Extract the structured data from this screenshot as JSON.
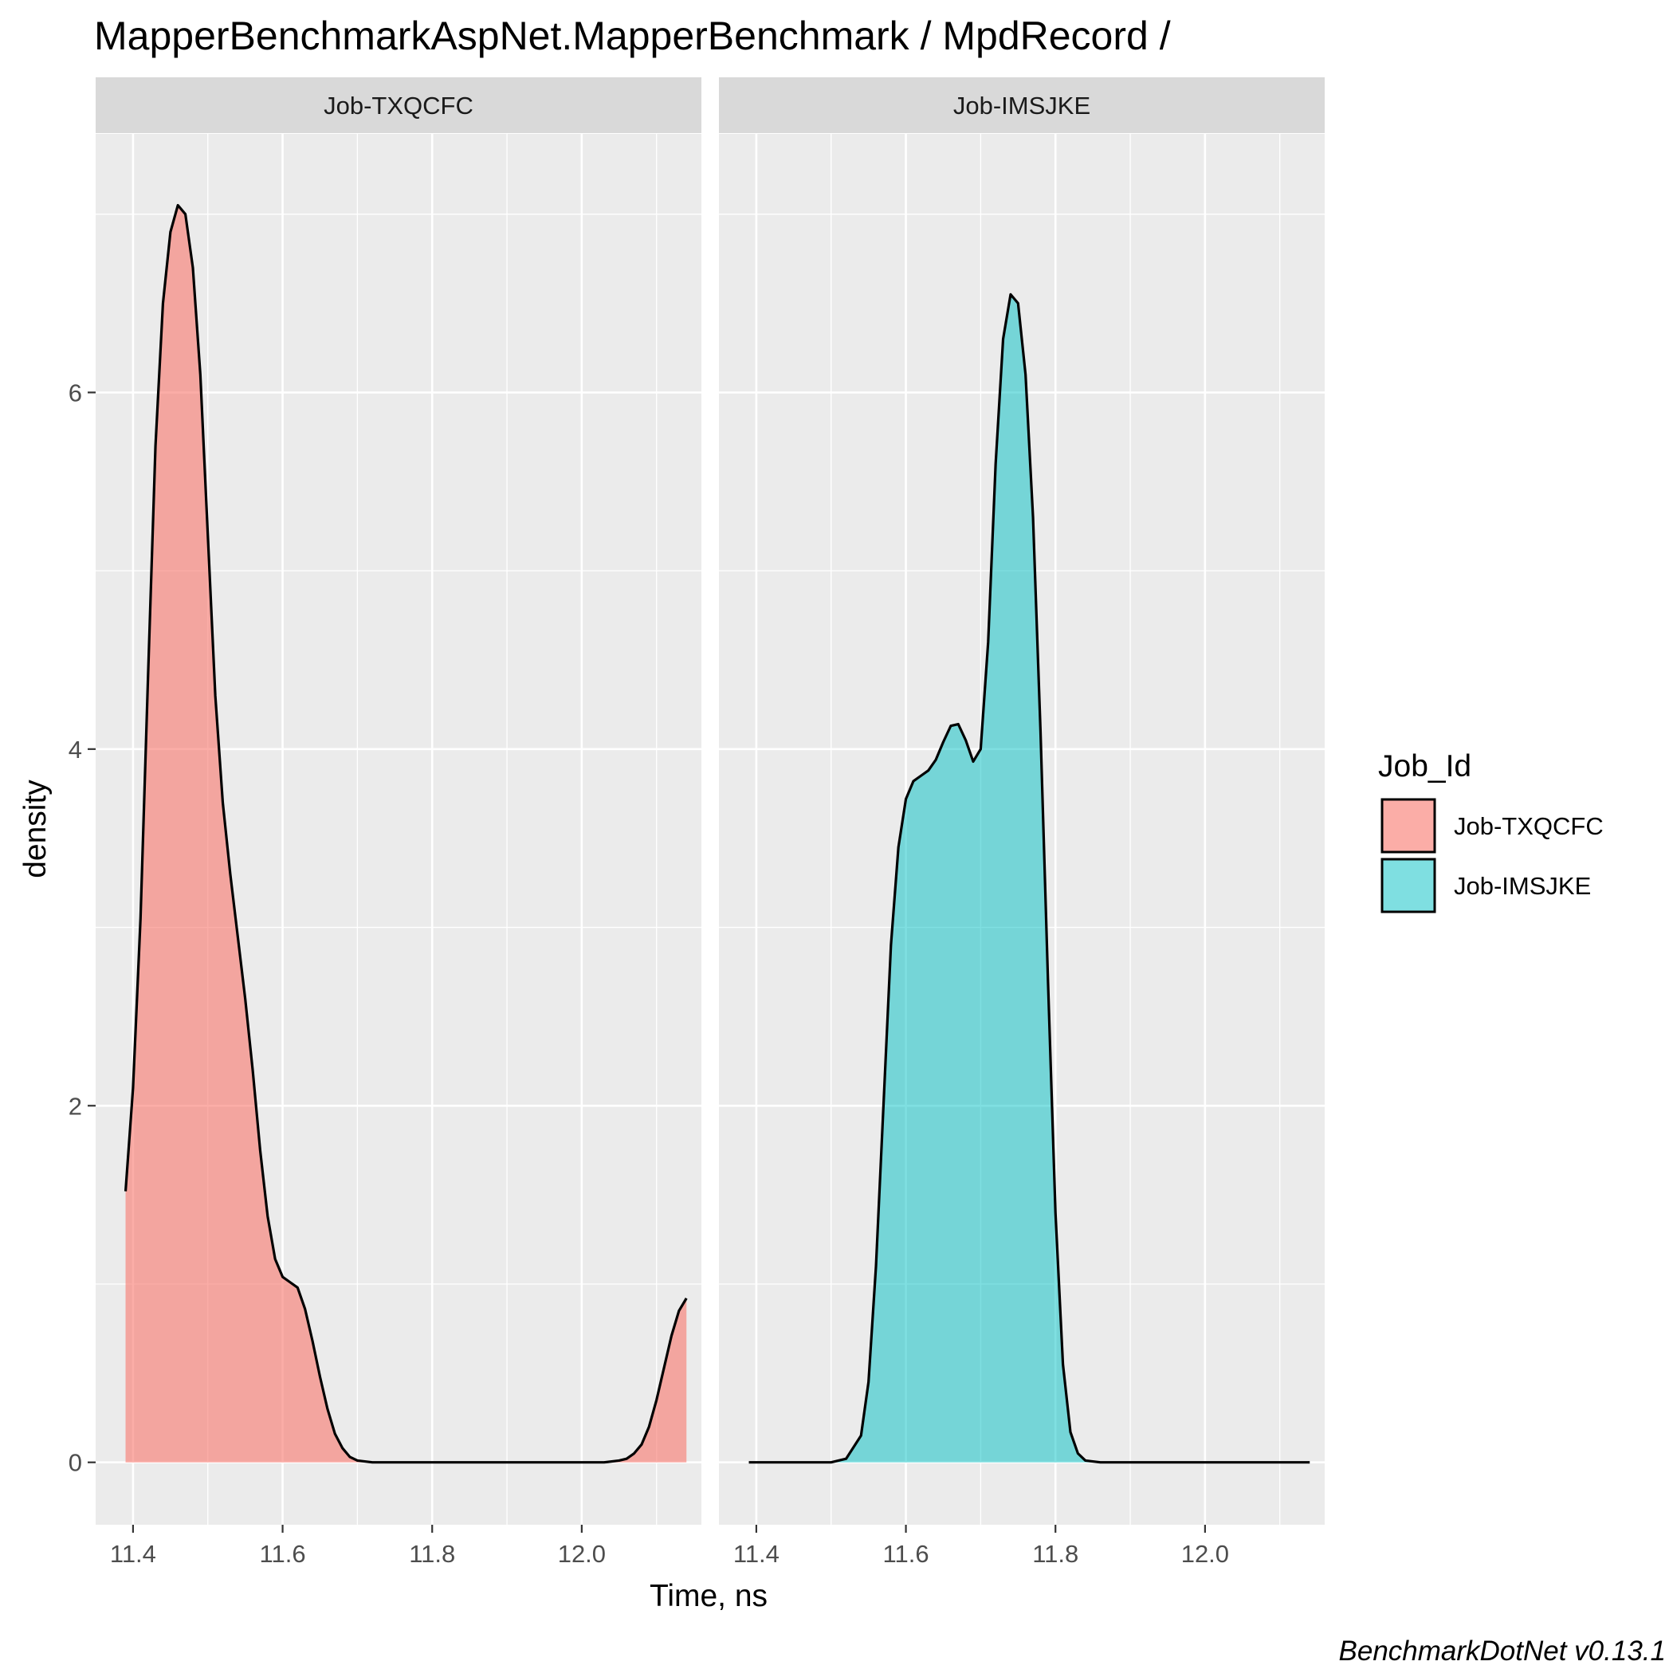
{
  "chart_data": {
    "type": "area",
    "title": "MapperBenchmarkAspNet.MapperBenchmark / MpdRecord /",
    "xlabel": "Time, ns",
    "ylabel": "density",
    "caption": "BenchmarkDotNet v0.13.1",
    "xlim": [
      11.35,
      12.16
    ],
    "ylim": [
      -0.35,
      7.45
    ],
    "x_ticks": [
      11.4,
      11.6,
      11.8,
      12.0
    ],
    "x_tick_labels": [
      "11.4",
      "11.6",
      "11.8",
      "12.0"
    ],
    "y_ticks": [
      0,
      2,
      4,
      6
    ],
    "y_tick_labels": [
      "0",
      "2",
      "4",
      "6"
    ],
    "grid": true,
    "legend": {
      "title": "Job_Id",
      "placement": "right",
      "entries": [
        "Job-TXQCFC",
        "Job-IMSJKE"
      ]
    },
    "facets": [
      "Job-TXQCFC",
      "Job-IMSJKE"
    ],
    "series": [
      {
        "name": "Job-TXQCFC",
        "color": "#F8766D",
        "line_span": [
          11.39,
          12.14
        ],
        "fill_span": [
          11.39,
          12.14
        ],
        "x": [
          11.39,
          11.4,
          11.41,
          11.42,
          11.43,
          11.44,
          11.45,
          11.46,
          11.47,
          11.48,
          11.49,
          11.5,
          11.51,
          11.52,
          11.53,
          11.54,
          11.55,
          11.56,
          11.57,
          11.58,
          11.59,
          11.6,
          11.61,
          11.62,
          11.63,
          11.64,
          11.65,
          11.66,
          11.67,
          11.68,
          11.69,
          11.7,
          11.72,
          11.75,
          11.8,
          11.9,
          12.0,
          12.03,
          12.05,
          12.06,
          12.07,
          12.08,
          12.09,
          12.1,
          12.11,
          12.12,
          12.13,
          12.14
        ],
        "y": [
          1.52,
          2.1,
          3.05,
          4.4,
          5.7,
          6.5,
          6.9,
          7.05,
          7.0,
          6.7,
          6.1,
          5.2,
          4.3,
          3.7,
          3.3,
          2.95,
          2.6,
          2.2,
          1.75,
          1.38,
          1.14,
          1.04,
          1.01,
          0.98,
          0.86,
          0.68,
          0.48,
          0.3,
          0.16,
          0.08,
          0.03,
          0.01,
          0.0,
          0.0,
          0.0,
          0.0,
          0.0,
          0.0,
          0.01,
          0.02,
          0.05,
          0.1,
          0.2,
          0.35,
          0.53,
          0.71,
          0.85,
          0.92
        ]
      },
      {
        "name": "Job-IMSJKE",
        "color": "#00BFC4",
        "line_span": [
          11.39,
          12.14
        ],
        "fill_span": [
          11.5,
          11.86
        ],
        "x": [
          11.39,
          11.45,
          11.5,
          11.52,
          11.54,
          11.55,
          11.56,
          11.57,
          11.58,
          11.59,
          11.6,
          11.61,
          11.62,
          11.63,
          11.64,
          11.65,
          11.66,
          11.67,
          11.68,
          11.69,
          11.7,
          11.71,
          11.72,
          11.73,
          11.74,
          11.75,
          11.76,
          11.77,
          11.78,
          11.79,
          11.8,
          11.81,
          11.82,
          11.83,
          11.84,
          11.86,
          11.9,
          12.0,
          12.14
        ],
        "y": [
          0.0,
          0.0,
          0.0,
          0.02,
          0.15,
          0.45,
          1.1,
          2.0,
          2.9,
          3.45,
          3.72,
          3.82,
          3.85,
          3.88,
          3.94,
          4.04,
          4.13,
          4.14,
          4.05,
          3.93,
          4.0,
          4.6,
          5.6,
          6.3,
          6.55,
          6.5,
          6.1,
          5.3,
          4.1,
          2.7,
          1.4,
          0.55,
          0.17,
          0.05,
          0.01,
          0.0,
          0.0,
          0.0,
          0.0
        ]
      }
    ]
  }
}
